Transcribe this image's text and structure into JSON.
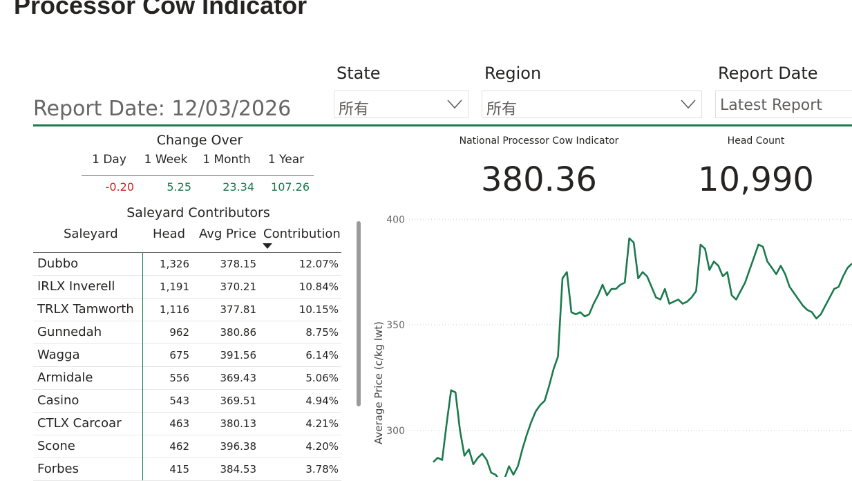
{
  "page_title": "Processor Cow Indicator",
  "filters": {
    "state": {
      "label": "State",
      "value": "所有"
    },
    "region": {
      "label": "Region",
      "value": "所有"
    },
    "report_date": {
      "label": "Report Date",
      "value": "Latest Report"
    }
  },
  "report_date_text": "Report Date: 12/03/2026",
  "change_over": {
    "title": "Change Over",
    "periods": [
      {
        "label": "1 Day",
        "value": "-0.20",
        "direction": "down"
      },
      {
        "label": "1 Week",
        "value": "5.25",
        "direction": "up"
      },
      {
        "label": "1 Month",
        "value": "23.34",
        "direction": "up"
      },
      {
        "label": "1 Year",
        "value": "107.26",
        "direction": "up"
      }
    ]
  },
  "kpis": {
    "indicator": {
      "label": "National Processor Cow Indicator",
      "value": "380.36"
    },
    "head_count": {
      "label": "Head Count",
      "value": "10,990"
    }
  },
  "contributors": {
    "title": "Saleyard Contributors",
    "columns": [
      "Saleyard",
      "Head",
      "Avg Price",
      "Contribution"
    ],
    "rows": [
      [
        "Dubbo",
        "1,326",
        "378.15",
        "12.07%"
      ],
      [
        "IRLX Inverell",
        "1,191",
        "370.21",
        "10.84%"
      ],
      [
        "TRLX Tamworth",
        "1,116",
        "377.81",
        "10.15%"
      ],
      [
        "Gunnedah",
        "962",
        "380.86",
        "8.75%"
      ],
      [
        "Wagga",
        "675",
        "391.56",
        "6.14%"
      ],
      [
        "Armidale",
        "556",
        "369.43",
        "5.06%"
      ],
      [
        "Casino",
        "543",
        "369.51",
        "4.94%"
      ],
      [
        "CTLX Carcoar",
        "463",
        "380.13",
        "4.21%"
      ],
      [
        "Scone",
        "462",
        "396.38",
        "4.20%"
      ],
      [
        "Forbes",
        "415",
        "384.53",
        "3.78%"
      ]
    ]
  },
  "colors": {
    "accent": "#1a7a4c",
    "negative": "#d32020"
  },
  "chart_data": {
    "type": "line",
    "ylabel": "Average Price (c/kg lwt)",
    "yticks": [
      300,
      350,
      400
    ],
    "ylim": [
      278,
      405
    ],
    "grid": true,
    "series": [
      {
        "values": [
          285,
          287,
          286,
          303,
          319,
          318,
          300,
          288,
          291,
          284,
          287,
          289,
          286,
          280,
          279,
          276,
          277,
          283,
          279,
          283,
          291,
          298,
          304,
          309,
          312,
          314,
          321,
          329,
          335,
          372,
          375,
          356,
          355,
          356,
          354,
          355,
          360,
          364,
          369,
          364,
          367,
          367,
          369,
          370,
          391,
          389,
          372,
          375,
          373,
          368,
          363,
          362,
          367,
          360,
          361,
          362,
          360,
          361,
          363,
          366,
          388,
          386,
          376,
          380,
          378,
          373,
          375,
          364,
          362,
          366,
          370,
          376,
          382,
          388,
          387,
          380,
          377,
          374,
          378,
          374,
          368,
          365,
          362,
          359,
          357,
          356,
          353,
          355,
          359,
          363,
          367,
          368,
          373,
          377,
          379
        ]
      }
    ]
  }
}
